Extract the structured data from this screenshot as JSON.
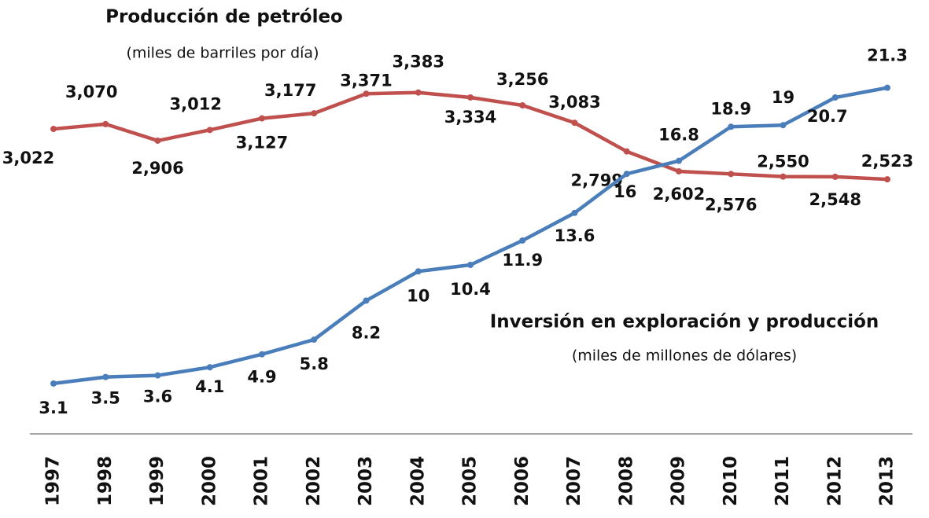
{
  "chart_data": {
    "type": "line",
    "categories": [
      "1997",
      "1998",
      "1999",
      "2000",
      "2001",
      "2002",
      "2003",
      "2004",
      "2005",
      "2006",
      "2007",
      "2008",
      "2009",
      "2010",
      "2011",
      "2012",
      "2013"
    ],
    "ylim": [
      0,
      26.7
    ],
    "y2lim": [
      0,
      4300
    ],
    "series": [
      {
        "name": "Producción  de petróleo",
        "unit_label": "(miles de barriles por día)",
        "color": "#c0504d",
        "axis": "y2",
        "values": [
          3022,
          3070,
          2906,
          3012,
          3127,
          3177,
          3371,
          3383,
          3334,
          3256,
          3083,
          2799,
          2602,
          2576,
          2550,
          2548,
          2523
        ],
        "value_labels": [
          "3,022",
          "3,070",
          "2,906",
          "3,012",
          "3,127",
          "3,177",
          "3,371",
          "3,383",
          "3,334",
          "3,256",
          "3,083",
          "2,799",
          "2,602",
          "2,576",
          "2,550",
          "2,548",
          "2,523"
        ]
      },
      {
        "name": "Inversión  en exploración y producción",
        "unit_label": "(miles de millones de dólares)",
        "color": "#4a7ebb",
        "values": [
          3.1,
          3.5,
          3.6,
          4.1,
          4.9,
          5.8,
          8.2,
          10,
          10.4,
          11.9,
          13.6,
          16,
          16.8,
          18.9,
          19,
          20.7,
          21.3
        ]
      }
    ]
  }
}
